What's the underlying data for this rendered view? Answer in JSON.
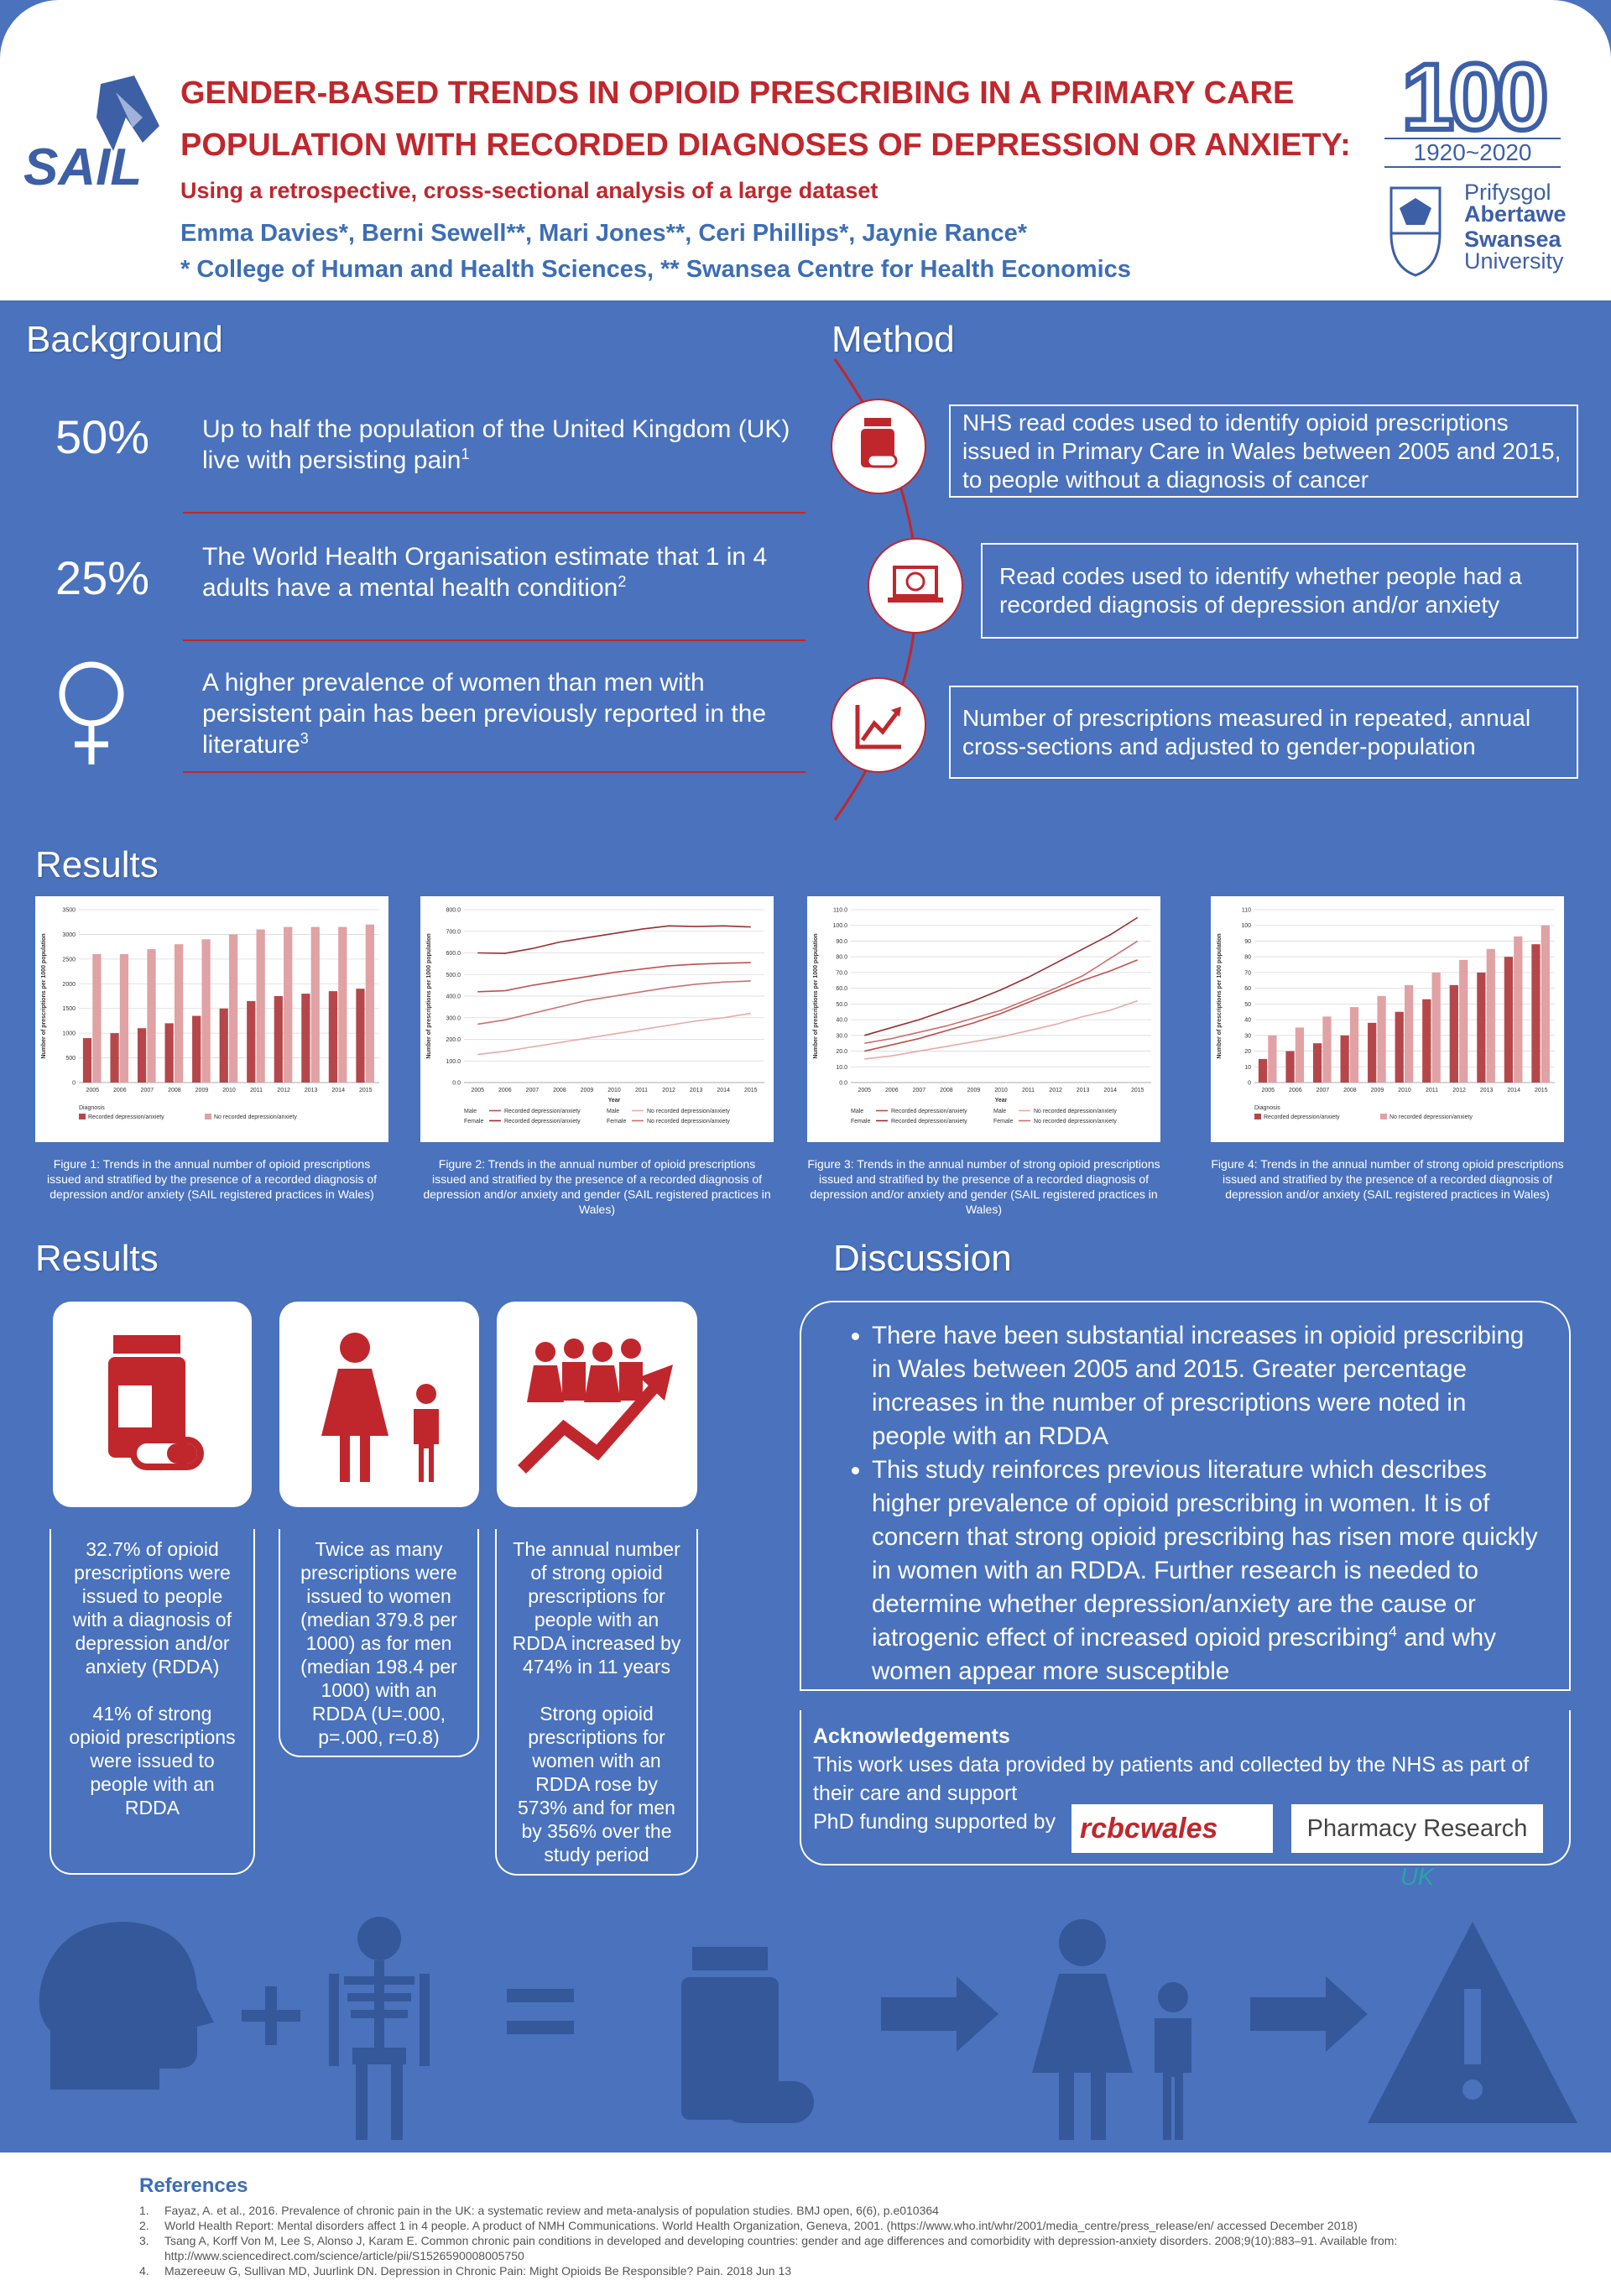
{
  "header": {
    "logo_text": "SAIL",
    "title_line1": "GENDER-BASED TRENDS IN OPIOID PRESCRIBING IN A PRIMARY CARE",
    "title_line2": "POPULATION WITH RECORDED DIAGNOSES OF DEPRESSION OR ANXIETY:",
    "subtitle": "Using a retrospective, cross-sectional analysis of a large dataset",
    "authors": "Emma Davies*, Berni Sewell**, Mari Jones**, Ceri Phillips*, Jaynie Rance*",
    "affiliations": "* College of Human and Health Sciences, ** Swansea Centre for Health Economics",
    "centenary_number": "100",
    "centenary_years": "1920~2020",
    "university_welsh_1": "Prifysgol",
    "university_welsh_2": "Abertawe",
    "university_english_1": "Swansea",
    "university_english_2": "University"
  },
  "background": {
    "heading": "Background",
    "items": [
      {
        "stat": "50%",
        "text": "Up to half the population of the United Kingdom (UK) live with persisting pain",
        "sup": "1"
      },
      {
        "stat": "25%",
        "text": "The World Health Organisation estimate that 1 in 4 adults have a mental health condition",
        "sup": "2"
      },
      {
        "text": "A higher prevalence of women than men with persistent pain has been previously reported in the literature",
        "sup": "3"
      }
    ]
  },
  "method": {
    "heading": "Method",
    "items": [
      "NHS read codes used to identify opioid prescriptions issued in Primary Care in Wales between 2005 and 2015, to people without a diagnosis of cancer",
      "Read codes used to identify whether people had a recorded diagnosis of depression and/or anxiety",
      "Number of prescriptions measured in repeated, annual cross-sections and adjusted to gender-population"
    ]
  },
  "results_figures": {
    "heading": "Results",
    "figures": [
      {
        "caption": "Figure 1: Trends in the annual number of opioid prescriptions issued and stratified by the presence of a recorded diagnosis of depression and/or anxiety (SAIL registered practices in Wales)",
        "chart": {
          "type": "bar",
          "y_label": "Number of prescriptions per 1000 population",
          "legend_title": "Diagnosis",
          "categories": [
            "2005",
            "2006",
            "2007",
            "2008",
            "2009",
            "2010",
            "2011",
            "2012",
            "2013",
            "2014",
            "2015"
          ],
          "ylim": [
            0,
            3500
          ],
          "yticks": [
            0,
            500,
            1000,
            1500,
            2000,
            2500,
            3000,
            3500
          ],
          "series": [
            {
              "name": "Recorded depression/anxiety",
              "color": "#b5474b",
              "values": [
                900,
                1000,
                1100,
                1200,
                1350,
                1500,
                1650,
                1750,
                1800,
                1850,
                1900
              ]
            },
            {
              "name": "No recorded depression/anxiety",
              "color": "#e0a2a4",
              "values": [
                2600,
                2600,
                2700,
                2800,
                2900,
                3000,
                3100,
                3150,
                3150,
                3150,
                3200
              ]
            }
          ]
        }
      },
      {
        "caption": "Figure 2: Trends in the annual number of  opioid prescriptions issued and stratified by the presence of a recorded diagnosis of depression and/or anxiety and gender (SAIL registered practices in Wales)",
        "chart": {
          "type": "line",
          "y_label": "Number of prescriptions per 1000 population",
          "x_label": "Year",
          "categories": [
            "2005",
            "2006",
            "2007",
            "2008",
            "2009",
            "2010",
            "2011",
            "2012",
            "2013",
            "2014",
            "2015"
          ],
          "ylim": [
            0,
            800
          ],
          "yticks": [
            {
              "value": 0,
              "label": "0.0"
            },
            {
              "value": 100,
              "label": "100.0"
            },
            {
              "value": 200,
              "label": "200.0"
            },
            {
              "value": 300,
              "label": "300.0"
            },
            {
              "value": 400,
              "label": "400.0"
            },
            {
              "value": 500,
              "label": "500.0"
            },
            {
              "value": 600,
              "label": "600.0"
            },
            {
              "value": 700,
              "label": "700.0"
            },
            {
              "value": 800,
              "label": "800.0"
            }
          ],
          "series": [
            {
              "sex": "Male",
              "condition": "Recorded depression/anxiety",
              "color": "#c0504d",
              "values": [
                420,
                425,
                450,
                470,
                490,
                510,
                525,
                540,
                548,
                552,
                555
              ]
            },
            {
              "sex": "Male",
              "condition": "No recorded depression/anxiety",
              "color": "#e6aaa9",
              "values": [
                130,
                145,
                165,
                185,
                205,
                225,
                245,
                265,
                285,
                300,
                320
              ]
            },
            {
              "sex": "Female",
              "condition": "Recorded depression/anxiety",
              "color": "#9b2d30",
              "values": [
                600,
                598,
                620,
                650,
                670,
                690,
                710,
                725,
                722,
                725,
                720
              ]
            },
            {
              "sex": "Female",
              "condition": "No recorded depression/anxiety",
              "color": "#cd6f6f",
              "values": [
                270,
                290,
                320,
                350,
                380,
                400,
                420,
                440,
                455,
                465,
                470
              ]
            }
          ]
        }
      },
      {
        "caption": "Figure 3: Trends in the annual number of  strong opioid prescriptions issued and stratified by the presence of a recorded diagnosis of depression and/or anxiety and gender (SAIL registered practices in Wales)",
        "chart": {
          "type": "line",
          "y_label": "Number of prescriptions per 1000 population",
          "x_label": "Year",
          "categories": [
            "2005",
            "2006",
            "2007",
            "2008",
            "2009",
            "2010",
            "2011",
            "2012",
            "2013",
            "2014",
            "2015"
          ],
          "ylim": [
            0,
            110
          ],
          "yticks": [
            {
              "value": 0,
              "label": "0.0"
            },
            {
              "value": 10,
              "label": "10.0"
            },
            {
              "value": 20,
              "label": "20.0"
            },
            {
              "value": 30,
              "label": "30.0"
            },
            {
              "value": 40,
              "label": "40.0"
            },
            {
              "value": 50,
              "label": "50.0"
            },
            {
              "value": 60,
              "label": "60.0"
            },
            {
              "value": 70,
              "label": "70.0"
            },
            {
              "value": 80,
              "label": "80.0"
            },
            {
              "value": 90,
              "label": "90.0"
            },
            {
              "value": 100,
              "label": "100.0"
            },
            {
              "value": 110,
              "label": "110.0"
            }
          ],
          "series": [
            {
              "sex": "Male",
              "condition": "Recorded depression/anxiety",
              "color": "#c0504d",
              "values": [
                20,
                24,
                28,
                33,
                38,
                44,
                51,
                58,
                65,
                71,
                78
              ]
            },
            {
              "sex": "Male",
              "condition": "No recorded depression/anxiety",
              "color": "#e6aaa9",
              "values": [
                15,
                17,
                20,
                23,
                26,
                29,
                33,
                37,
                42,
                46,
                52
              ]
            },
            {
              "sex": "Female",
              "condition": "Recorded depression/anxiety",
              "color": "#9b2d30",
              "values": [
                30,
                35,
                40,
                46,
                52,
                59,
                67,
                76,
                85,
                94,
                105
              ]
            },
            {
              "sex": "Female",
              "condition": "No recorded depression/anxiety",
              "color": "#cd6f6f",
              "values": [
                25,
                28,
                32,
                36,
                41,
                46,
                53,
                60,
                68,
                79,
                90
              ]
            }
          ]
        }
      },
      {
        "caption": "Figure 4: Trends in the annual number of  strong opioid prescriptions issued and stratified by the presence of a recorded diagnosis of depression and/or anxiety (SAIL registered practices in Wales)",
        "chart": {
          "type": "bar",
          "y_label": "Number of prescriptions per 1000 population",
          "legend_title": "Diagnosis",
          "categories": [
            "2005",
            "2006",
            "2007",
            "2008",
            "2009",
            "2010",
            "2011",
            "2012",
            "2013",
            "2014",
            "2015"
          ],
          "ylim": [
            0,
            110
          ],
          "yticks": [
            0,
            10,
            20,
            30,
            40,
            50,
            60,
            70,
            80,
            90,
            100,
            110
          ],
          "series": [
            {
              "name": "Recorded depression/anxiety",
              "color": "#b5474b",
              "values": [
                15,
                20,
                25,
                30,
                38,
                45,
                53,
                62,
                70,
                80,
                88
              ]
            },
            {
              "name": "No recorded depression/anxiety",
              "color": "#e0a2a4",
              "values": [
                30,
                35,
                42,
                48,
                55,
                62,
                70,
                78,
                85,
                93,
                100
              ]
            }
          ]
        }
      }
    ]
  },
  "results_summary": {
    "heading": "Results",
    "boxes": [
      [
        "32.7% of opioid prescriptions were issued to people with a diagnosis of depression and/or anxiety (RDDA)",
        "41% of strong opioid prescriptions were issued to people with an RDDA"
      ],
      [
        "Twice as many prescriptions were issued to women (median 379.8 per 1000) as for men (median 198.4 per 1000) with an RDDA (U=.000, p=.000, r=0.8)"
      ],
      [
        "The annual number of strong opioid prescriptions for people with an RDDA increased by 474% in 11 years",
        "Strong opioid prescriptions for women with an RDDA rose by 573% and for men by 356% over the study period"
      ]
    ]
  },
  "discussion": {
    "heading": "Discussion",
    "bullets": [
      {
        "text": "There have been substantial increases in opioid prescribing in Wales between 2005 and 2015. Greater percentage increases in the number of prescriptions were noted in people with an RDDA"
      },
      {
        "text": "This study reinforces previous literature which describes higher prevalence of opioid prescribing in women. It is of concern that strong opioid prescribing has risen more quickly in women with an RDDA. Further research is needed to determine whether depression/anxiety are the cause or iatrogenic effect of increased opioid prescribing",
        "sup": "4",
        "text_after": " and why women appear more susceptible"
      }
    ]
  },
  "acknowledgements": {
    "heading": "Acknowledgements",
    "text": "This work uses data provided by patients and collected by the NHS as part of their care and support",
    "funding": "PhD funding supported by",
    "logo_rcbc": "rcbcwales",
    "logo_pru_main": "Pharmacy Research",
    "logo_pru_uk": "UK"
  },
  "references": {
    "heading": "References",
    "items": [
      {
        "number": "1.",
        "text": "Fayaz, A. et al., 2016. Prevalence of chronic pain in the UK: a systematic review and meta-analysis of population studies. BMJ open, 6(6), p.e010364"
      },
      {
        "number": "2.",
        "text": "World Health Report: Mental disorders affect 1 in 4 people. A product of NMH Communications. World Health Organization, Geneva, 2001. (https://www.who.int/whr/2001/media_centre/press_release/en/ accessed December 2018)"
      },
      {
        "number": "3.",
        "text": "Tsang A, Korff Von M, Lee S, Alonso J, Karam E. Common chronic pain conditions in developed and developing countries: gender and age differences and comorbidity with depression-anxiety disorders. 2008;9(10):883–91. Available from: http://www.sciencedirect.com/science/article/pii/S1526590008005750"
      },
      {
        "number": "4.",
        "text": "Mazereeuw G, Sullivan MD, Juurlink DN. Depression in Chronic Pain: Might Opioids Be Responsible? Pain. 2018 Jun 13"
      }
    ]
  }
}
